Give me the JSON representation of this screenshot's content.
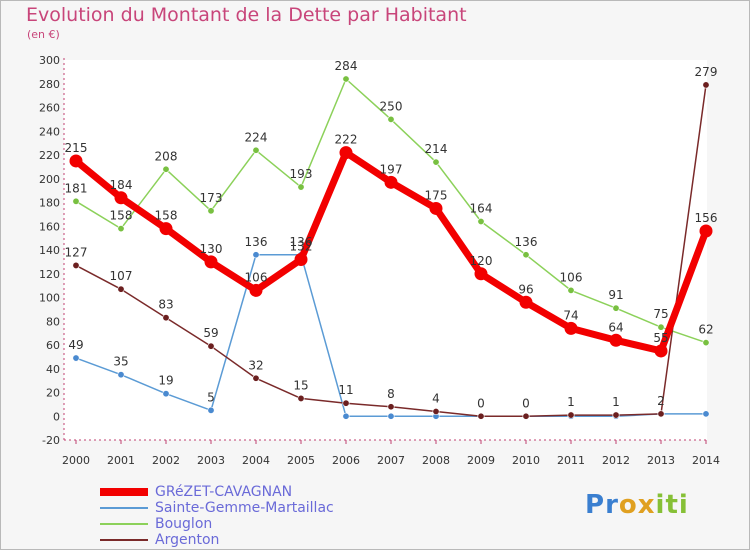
{
  "title": "Evolution du Montant de la Dette par Habitant",
  "subtitle": "(en €)",
  "logo": {
    "text": "Proxiti",
    "colors": [
      "#3a7fd0",
      "#3a7fd0",
      "#e0a020",
      "#e0a020",
      "#86c036",
      "#86c036",
      "#86c036"
    ]
  },
  "chart_data": {
    "type": "line",
    "x": [
      "2000",
      "2001",
      "2002",
      "2003",
      "2004",
      "2005",
      "2006",
      "2007",
      "2008",
      "2009",
      "2010",
      "2011",
      "2012",
      "2013",
      "2014"
    ],
    "ylim": [
      -20,
      300
    ],
    "yticks": [
      -20,
      0,
      20,
      40,
      60,
      80,
      100,
      120,
      140,
      160,
      180,
      200,
      220,
      240,
      260,
      280,
      300
    ],
    "grid": false,
    "series": [
      {
        "name": "Sainte-Gemme-Martaillac",
        "color": "#5b9bd5",
        "width": 1.5,
        "values": [
          49,
          35,
          19,
          5,
          136,
          136,
          0,
          0,
          0,
          0,
          0,
          0,
          0,
          2,
          2
        ],
        "labels": [
          "49",
          "35",
          "19",
          "5",
          "136",
          "136",
          "",
          "",
          "",
          "",
          "",
          "",
          "",
          "",
          ""
        ]
      },
      {
        "name": "Bouglon",
        "color": "#8cd15a",
        "width": 1.5,
        "values": [
          181,
          158,
          208,
          173,
          224,
          193,
          284,
          250,
          214,
          164,
          136,
          106,
          91,
          75,
          62
        ],
        "labels": [
          "181",
          "158",
          "208",
          "173",
          "224",
          "193",
          "284",
          "250",
          "214",
          "164",
          "136",
          "106",
          "91",
          "75",
          "62"
        ]
      },
      {
        "name": "Argenton",
        "color": "#7a2a2a",
        "width": 1.5,
        "values": [
          127,
          107,
          83,
          59,
          32,
          15,
          11,
          8,
          4,
          0,
          0,
          1,
          1,
          2,
          279
        ],
        "labels": [
          "127",
          "107",
          "83",
          "59",
          "32",
          "15",
          "11",
          "8",
          "4",
          "0",
          "0",
          "1",
          "1",
          "2",
          "279"
        ]
      },
      {
        "name": "GRéZET-CAVAGNAN",
        "color": "#f20000",
        "width": 7,
        "values": [
          215,
          184,
          158,
          130,
          106,
          132,
          222,
          197,
          175,
          120,
          96,
          74,
          64,
          55,
          156
        ],
        "labels": [
          "215",
          "184",
          "158",
          "130",
          "106",
          "132",
          "222",
          "197",
          "175",
          "120",
          "96",
          "74",
          "64",
          "55",
          "156"
        ]
      }
    ],
    "legend_order": [
      3,
      0,
      1,
      2
    ]
  }
}
